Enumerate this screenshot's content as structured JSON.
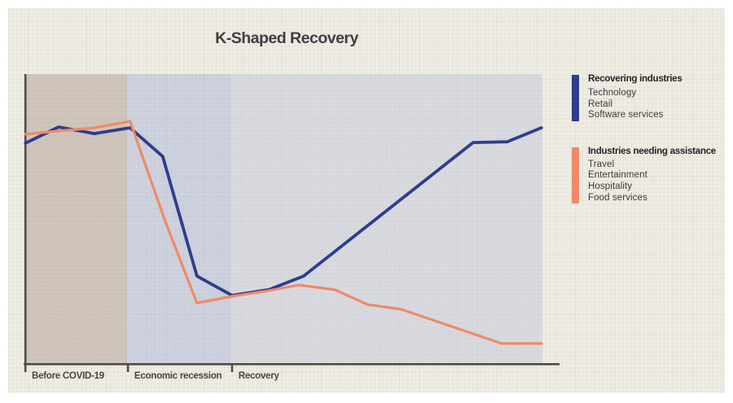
{
  "chart_data": {
    "type": "line",
    "title": "K-Shaped Recovery",
    "xlabel": "",
    "ylabel": "",
    "x_range": [
      0,
      100
    ],
    "y_range": [
      0,
      100
    ],
    "grid": false,
    "legend_position": "right",
    "x_axis": {
      "phases": [
        {
          "label": "Before COVID-19",
          "span": [
            0,
            19.8
          ]
        },
        {
          "label": "Economic recession",
          "span": [
            19.8,
            39.9
          ]
        },
        {
          "label": "Recovery",
          "span": [
            39.9,
            100
          ]
        }
      ]
    },
    "series": [
      {
        "name": "Recovering industries",
        "industries": [
          "Technology",
          "Retail",
          "Software services"
        ],
        "color": "#2f3d8e",
        "x": [
          0.2,
          6.6,
          13.5,
          20.4,
          26.7,
          33.3,
          40.1,
          47.2,
          53.9,
          86.6,
          93.2,
          99.8
        ],
        "values": [
          76.1,
          81.7,
          79.4,
          81.4,
          71.5,
          30.1,
          23.4,
          25.4,
          30.1,
          76.3,
          76.6,
          81.4
        ]
      },
      {
        "name": "Industries needing assistance",
        "industries": [
          "Travel",
          "Entertainment",
          "Hospitality",
          "Food services"
        ],
        "color": "#ef8a67",
        "x": [
          0.2,
          6.6,
          13.5,
          20.4,
          27.2,
          33.3,
          40.1,
          47.2,
          53.0,
          59.9,
          66.2,
          72.8,
          92.1,
          99.8
        ],
        "values": [
          79.2,
          80.3,
          81.4,
          83.7,
          49.0,
          20.8,
          23.1,
          25.1,
          27.0,
          25.4,
          20.3,
          18.6,
          6.8,
          6.8
        ]
      }
    ],
    "phase_colors": [
      "rgba(152,125,117,0.35)",
      "rgba(150,166,212,0.37)",
      "rgba(193,199,219,0.50)"
    ],
    "axis_color": "#504d48"
  }
}
